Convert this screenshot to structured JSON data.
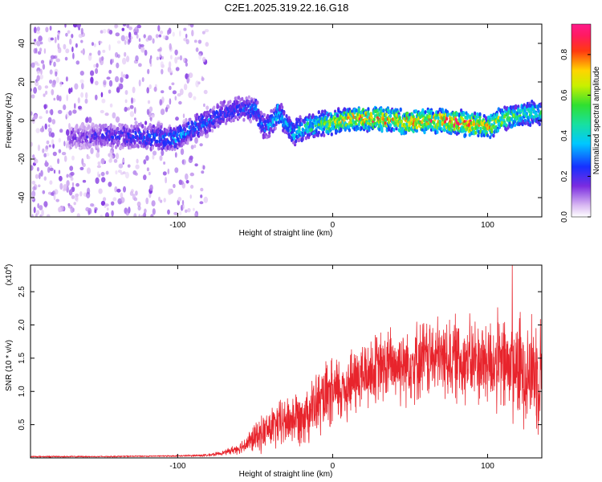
{
  "title": "C2E1.2025.319.22.16.G18",
  "chart_data": [
    {
      "type": "heatmap",
      "title": "C2E1.2025.319.22.16.G18",
      "xlabel": "Height of straight line (km)",
      "ylabel": "Frequency (Hz)",
      "xlim": [
        -195,
        135
      ],
      "ylim": [
        -50,
        50
      ],
      "xticks": [
        -100,
        0,
        100
      ],
      "xtick_labels": [
        "-100",
        "0",
        "100"
      ],
      "yticks": [
        -40,
        -20,
        0,
        20,
        40
      ],
      "ytick_labels": [
        "-40",
        "-20",
        "0",
        "20",
        "40"
      ],
      "colorbar": {
        "label": "Normalized spectral amplitude",
        "range": [
          0,
          0.95
        ],
        "ticks": [
          0,
          0.2,
          0.4,
          0.6,
          0.8
        ],
        "tick_labels": [
          "0.0",
          "0.2",
          "0.4",
          "0.6",
          "0.8"
        ],
        "colormap": "rainbow (violet-blue-cyan-green-yellow-red-magenta)"
      },
      "ridge": {
        "description": "Dominant frequency track vs height",
        "x": [
          -170,
          -150,
          -130,
          -110,
          -100,
          -90,
          -80,
          -70,
          -60,
          -50,
          -45,
          -40,
          -35,
          -30,
          -25,
          -20,
          -10,
          0,
          10,
          20,
          30,
          40,
          50,
          60,
          70,
          80,
          90,
          100,
          110,
          120,
          130
        ],
        "y": [
          -9,
          -8,
          -8,
          -9,
          -9,
          -4,
          0,
          4,
          6,
          6,
          -3,
          -2,
          4,
          -2,
          -7,
          -4,
          -2,
          -1,
          0,
          1,
          1,
          0,
          -1,
          0,
          0,
          -1,
          -2,
          -3,
          1,
          3,
          4
        ],
        "peak_amplitude": [
          0.15,
          0.2,
          0.25,
          0.3,
          0.35,
          0.3,
          0.3,
          0.25,
          0.25,
          0.3,
          0.3,
          0.35,
          0.4,
          0.35,
          0.4,
          0.45,
          0.55,
          0.65,
          0.75,
          0.8,
          0.8,
          0.75,
          0.8,
          0.8,
          0.85,
          0.85,
          0.8,
          0.75,
          0.6,
          0.55,
          0.5
        ]
      },
      "noise_region": {
        "x_range": [
          -195,
          -80
        ],
        "y_range": [
          -50,
          50
        ],
        "amplitude": 0.05
      }
    },
    {
      "type": "line",
      "xlabel": "Height of straight line (km)",
      "ylabel": "SNR (10 * v/v)",
      "ylabel_multiplier": "(x10",
      "ylabel_multiplier_exp": "4",
      "ylabel_multiplier_close": ")",
      "xlim": [
        -195,
        135
      ],
      "ylim": [
        0,
        2.9
      ],
      "xticks": [
        -100,
        0,
        100
      ],
      "xtick_labels": [
        "-100",
        "0",
        "100"
      ],
      "yticks": [
        0.5,
        1.0,
        1.5,
        2.0,
        2.5
      ],
      "ytick_labels": [
        "0.5",
        "1.0",
        "1.5",
        "2.0",
        "2.5"
      ],
      "series": [
        {
          "name": "SNR",
          "color": "#e8242c",
          "envelope": {
            "x": [
              -195,
              -150,
              -100,
              -80,
              -70,
              -60,
              -50,
              -40,
              -30,
              -20,
              -10,
              0,
              10,
              20,
              30,
              40,
              50,
              60,
              70,
              80,
              90,
              100,
              110,
              120,
              130,
              135
            ],
            "mean": [
              0.02,
              0.02,
              0.03,
              0.04,
              0.08,
              0.15,
              0.3,
              0.45,
              0.55,
              0.65,
              0.8,
              0.95,
              1.1,
              1.25,
              1.35,
              1.4,
              1.45,
              1.5,
              1.5,
              1.5,
              1.45,
              1.45,
              1.4,
              1.35,
              1.3,
              1.3
            ],
            "spread": [
              0.01,
              0.01,
              0.01,
              0.02,
              0.03,
              0.08,
              0.2,
              0.3,
              0.35,
              0.4,
              0.45,
              0.5,
              0.5,
              0.5,
              0.5,
              0.55,
              0.55,
              0.55,
              0.55,
              0.6,
              0.6,
              0.65,
              0.7,
              0.75,
              0.8,
              0.8
            ]
          },
          "peak": {
            "x": 116,
            "y": 2.9
          }
        }
      ]
    }
  ]
}
